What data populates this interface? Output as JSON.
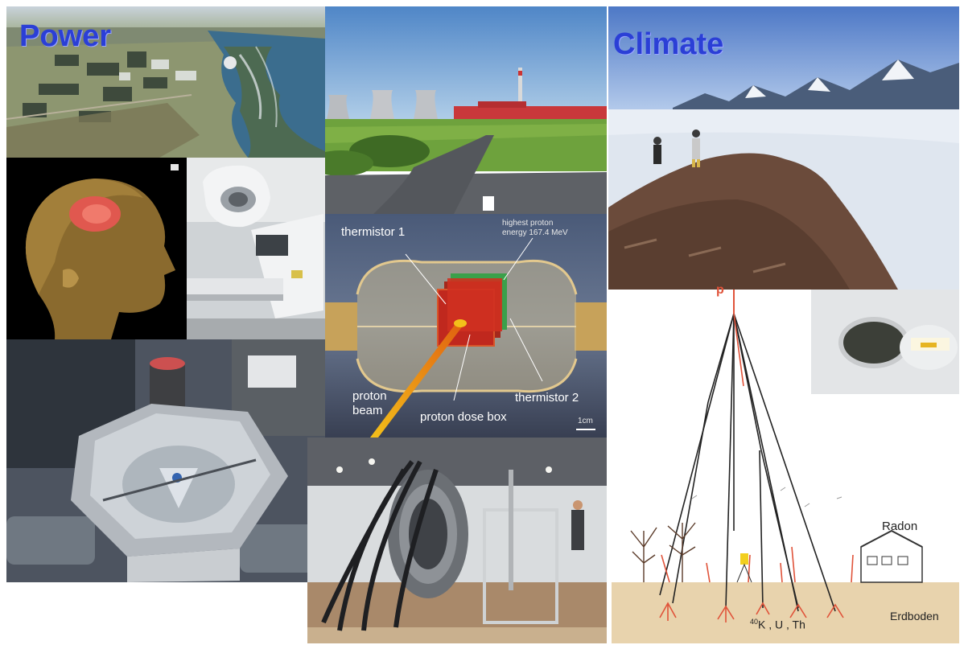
{
  "labels": {
    "power": "Power",
    "climate": "Climate"
  },
  "proton_panel": {
    "highest_energy_line1": "highest proton",
    "highest_energy_line2": "energy 167.4 MeV",
    "thermistor_1": "thermistor 1",
    "thermistor_2": "thermistor 2",
    "proton_line1": "proton",
    "proton_line2": "beam",
    "dose_box": "proton dose box",
    "scale": "1cm"
  },
  "cosmic_panel": {
    "primary": "p",
    "radon": "Radon",
    "ground": "Erdboden",
    "isotope_sup": "40",
    "isotopes": "K , U , Th"
  },
  "colors": {
    "label_blue": "#2b3fd6",
    "track_red": "#e0533a",
    "proton_red": "#c0281e",
    "soil": "#e8d3ad"
  }
}
